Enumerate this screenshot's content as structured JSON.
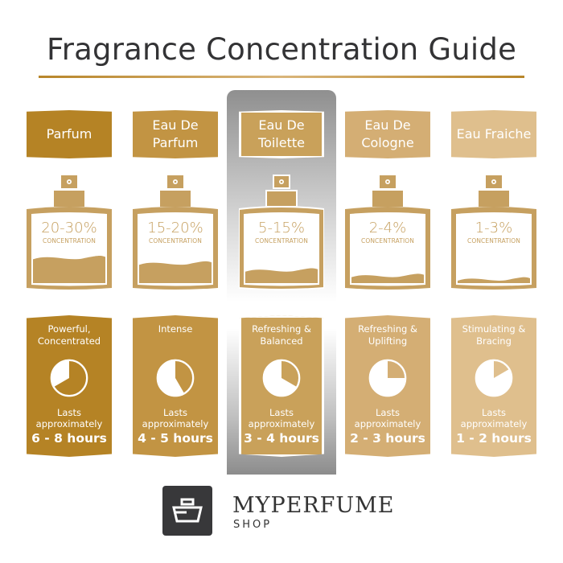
{
  "title": "Fragrance Concentration Guide",
  "columns": [
    {
      "name": "Parfum",
      "concentration": "20-30%",
      "concentration_label": "CONCENTRATION",
      "description": "Powerful, Concentrated",
      "lasts_label": "Lasts approximately",
      "duration": "6 - 8 hours",
      "color": "#b58325",
      "fill_level": 0.38,
      "pie_hours": 8,
      "highlighted": false
    },
    {
      "name": "Eau De Parfum",
      "concentration": "15-20%",
      "concentration_label": "CONCENTRATION",
      "description": "Intense",
      "lasts_label": "Lasts approximately",
      "duration": "4 - 5 hours",
      "color": "#c29443",
      "fill_level": 0.3,
      "pie_hours": 5,
      "highlighted": false
    },
    {
      "name": "Eau De Toilette",
      "concentration": "5-15%",
      "concentration_label": "CONCENTRATION",
      "description": "Refreshing & Balanced",
      "lasts_label": "Lasts approximately",
      "duration": "3 - 4 hours",
      "color": "#c9a15a",
      "fill_level": 0.2,
      "pie_hours": 4,
      "highlighted": true
    },
    {
      "name": "Eau De Cologne",
      "concentration": "2-4%",
      "concentration_label": "CONCENTRATION",
      "description": "Refreshing & Uplifting",
      "lasts_label": "Lasts approximately",
      "duration": "2 - 3 hours",
      "color": "#d4ae74",
      "fill_level": 0.12,
      "pie_hours": 3,
      "highlighted": false
    },
    {
      "name": "Eau Fraiche",
      "concentration": "1-3%",
      "concentration_label": "CONCENTRATION",
      "description": "Stimulating & Bracing",
      "lasts_label": "Lasts approximately",
      "duration": "1 - 2 hours",
      "color": "#dfbf8d",
      "fill_level": 0.07,
      "pie_hours": 2,
      "highlighted": false
    }
  ],
  "bottle_color": "#c6a060",
  "brand": {
    "name": "MYPERFUME",
    "sub": "SHOP"
  }
}
